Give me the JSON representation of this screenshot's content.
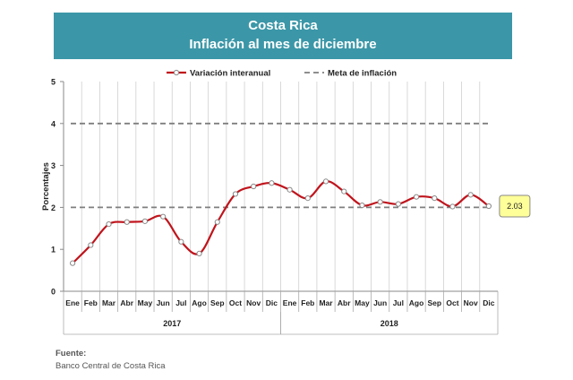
{
  "header": {
    "title": "Costa Rica",
    "subtitle": "Inflación al mes de diciembre"
  },
  "source": {
    "label": "Fuente:",
    "text": "Banco Central de Costa Rica"
  },
  "colors": {
    "banner": "#3b97a8",
    "series_line": "#c0141c",
    "marker_fill": "#ffffff",
    "marker_stroke": "#888888",
    "target_line": "#7f7f7f",
    "callout_fill": "#ffff99",
    "grid": "#d0d0d0"
  },
  "chart_data": {
    "type": "line",
    "categories": [
      "Ene",
      "Feb",
      "Mar",
      "Abr",
      "May",
      "Jun",
      "Jul",
      "Ago",
      "Sep",
      "Oct",
      "Nov",
      "Dic",
      "Ene",
      "Feb",
      "Mar",
      "Abr",
      "May",
      "Jun",
      "Jul",
      "Ago",
      "Sep",
      "Oct",
      "Nov",
      "Dic"
    ],
    "groups": [
      {
        "label": "2017",
        "start": 0,
        "end": 11
      },
      {
        "label": "2018",
        "start": 12,
        "end": 23
      }
    ],
    "series": [
      {
        "name": "Variación interanual",
        "values": [
          0.67,
          1.1,
          1.6,
          1.65,
          1.67,
          1.78,
          1.18,
          0.9,
          1.65,
          2.32,
          2.5,
          2.58,
          2.42,
          2.22,
          2.62,
          2.38,
          2.05,
          2.13,
          2.08,
          2.25,
          2.22,
          2.02,
          2.3,
          2.03
        ]
      }
    ],
    "target": {
      "name": "Meta de inflación",
      "lower": 2,
      "upper": 4
    },
    "callout": {
      "index": 23,
      "text": "2.03"
    },
    "ylabel": "Porcentajes",
    "ylim": [
      0,
      5
    ],
    "yticks": [
      0,
      1,
      2,
      3,
      4,
      5
    ],
    "grid": "vertical",
    "legend": "top-center"
  }
}
